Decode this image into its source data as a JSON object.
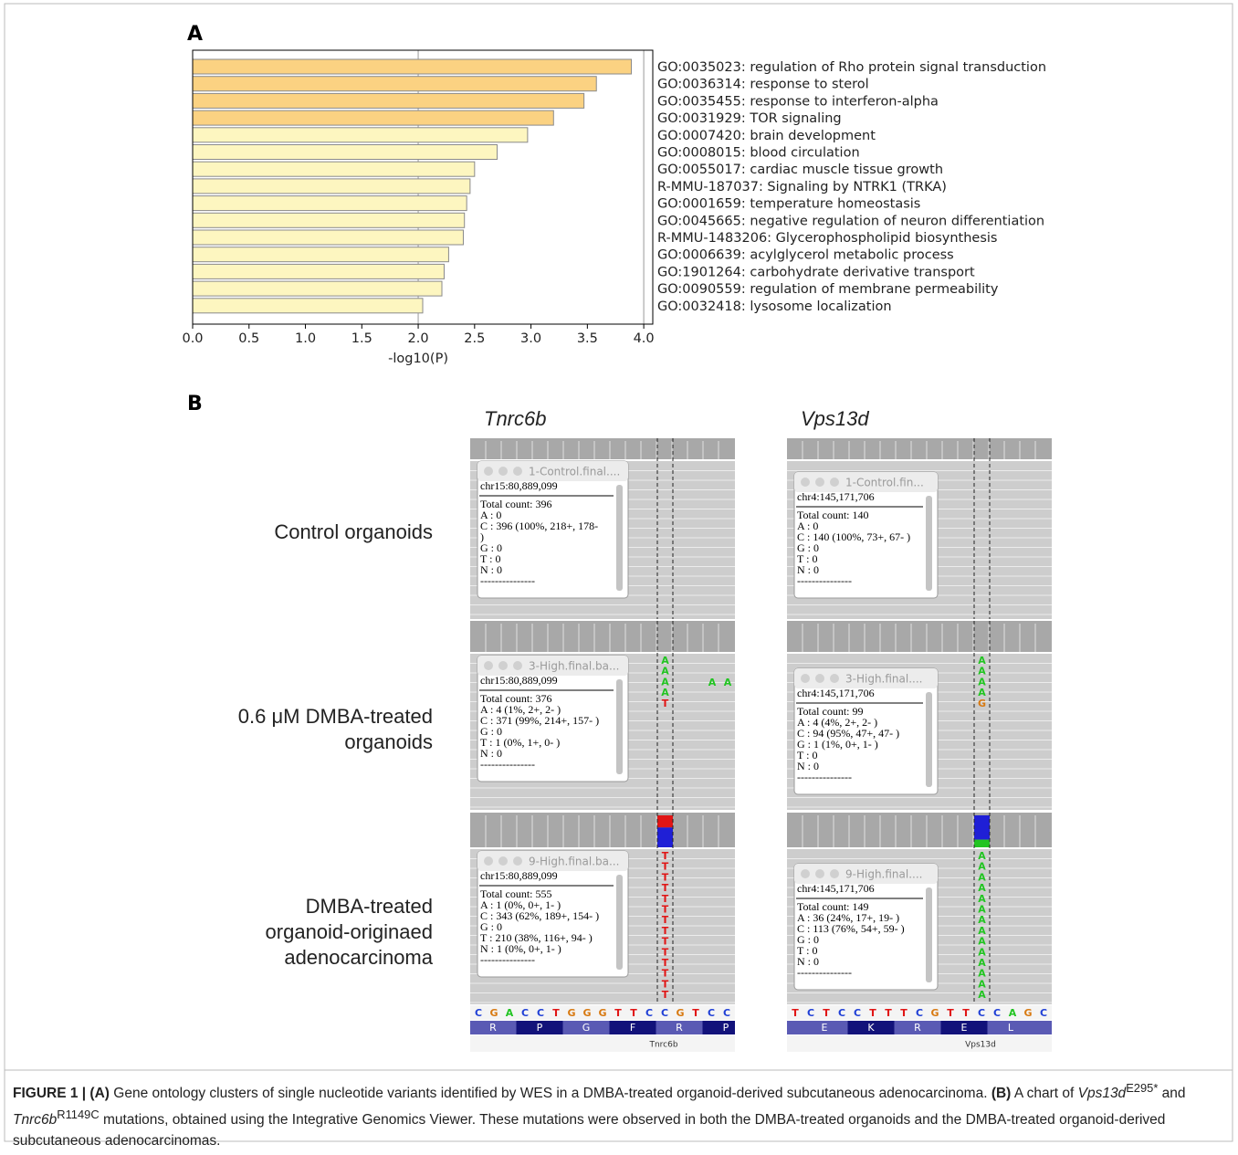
{
  "chart_data": {
    "type": "bar",
    "orientation": "horizontal",
    "panel_label": "A",
    "categories": [
      "GO:0035023: regulation of Rho protein signal transduction",
      "GO:0036314: response to sterol",
      "GO:0035455: response to interferon-alpha",
      "GO:0031929: TOR signaling",
      "GO:0007420: brain development",
      "GO:0008015: blood circulation",
      "GO:0055017: cardiac muscle tissue growth",
      "R-MMU-187037: Signaling by NTRK1 (TRKA)",
      "GO:0001659: temperature homeostasis",
      "GO:0045665: negative regulation of neuron differentiation",
      "R-MMU-1483206: Glycerophospholipid biosynthesis",
      "GO:0006639: acylglycerol metabolic process",
      "GO:1901264: carbohydrate derivative transport",
      "GO:0090559: regulation of membrane permeability",
      "GO:0032418: lysosome localization"
    ],
    "values": [
      3.89,
      3.58,
      3.47,
      3.2,
      2.97,
      2.7,
      2.5,
      2.46,
      2.43,
      2.41,
      2.4,
      2.27,
      2.23,
      2.21,
      2.04
    ],
    "colors": [
      "#fbd282",
      "#fbd282",
      "#fbd282",
      "#fbd282",
      "#fdf6c0",
      "#fdf6c0",
      "#fdf6c0",
      "#fdf6c0",
      "#fdf6c0",
      "#fdf6c0",
      "#fdf6c0",
      "#fdf6c0",
      "#fdf6c0",
      "#fdf6c0",
      "#fdf6c0"
    ],
    "xlabel": "-log10(P)",
    "xlim": [
      0,
      4.08
    ],
    "xticks": [
      {
        "value": 0,
        "label": "0.0"
      },
      0.5,
      {
        "value": 1,
        "label": "1.0"
      },
      1.5,
      {
        "value": 2,
        "label": "2.0"
      },
      2.5,
      {
        "value": 3,
        "label": "3.0"
      },
      3.5,
      {
        "value": 4,
        "label": "4.0"
      }
    ],
    "vlines": [
      2,
      4
    ]
  },
  "panel_b": {
    "label": "B",
    "conditions": [
      [
        "Control organoids"
      ],
      [
        "0.6 μM DMBA-treated",
        "organoids"
      ],
      [
        "DMBA-treated",
        "organoid-originaed",
        "adenocarcinoma"
      ]
    ],
    "base_colors": {
      "A": "#22c422",
      "C": "#1f3fd6",
      "G": "#d87a12",
      "T": "#e01515"
    },
    "columns": [
      {
        "gene": "Tnrc6b",
        "gene_label": "Tnrc6b",
        "sequence": [
          "C",
          "G",
          "A",
          "C",
          "C",
          "T",
          "G",
          "G",
          "G",
          "T",
          "T",
          "C",
          "C",
          "G",
          "T",
          "C",
          "C"
        ],
        "amino_acids": [
          "R",
          "P",
          "G",
          "F",
          "R",
          "P"
        ],
        "rows": [
          {
            "popup_title": "1-Control.final....",
            "popup_lines": [
              "chr15:80,889,099",
              "Total count: 396",
              "A : 0",
              "C : 396 (100%, 218+, 178-",
              ")",
              "G : 0",
              "T : 0",
              "N : 0",
              "---------------"
            ],
            "bases": []
          },
          {
            "popup_title": "3-High.final.ba...",
            "popup_lines": [
              "chr15:80,889,099",
              "Total count: 376",
              "A : 4 (1%, 2+, 2- )",
              "C : 371 (99%, 214+, 157- )",
              "G : 0",
              "T : 1 (0%, 1+, 0- )",
              "N : 0",
              "---------------"
            ],
            "bases": [
              "A",
              "A",
              "A",
              "A",
              "T"
            ],
            "side_bases": [
              "A",
              "A"
            ]
          },
          {
            "popup_title": "9-High.final.ba...",
            "popup_lines": [
              "chr15:80,889,099",
              "Total count: 555",
              "A : 1 (0%, 0+, 1- )",
              "C : 343 (62%, 189+, 154- )",
              "G : 0",
              "T : 210 (38%, 116+, 94- )",
              "N : 1 (0%, 0+, 1- )",
              "---------------"
            ],
            "bases": [
              "T",
              "T",
              "T",
              "T",
              "T",
              "T",
              "T",
              "T",
              "T",
              "T",
              "T",
              "T",
              "T",
              "T"
            ]
          }
        ]
      },
      {
        "gene": "Vps13d",
        "gene_label": "Vps13d",
        "sequence": [
          "T",
          "C",
          "T",
          "C",
          "C",
          "T",
          "T",
          "T",
          "C",
          "G",
          "T",
          "T",
          "C",
          "C",
          "A",
          "G",
          "C"
        ],
        "amino_acids": [
          "E",
          "K",
          "R",
          "E",
          "L"
        ],
        "rows": [
          {
            "popup_title": "1-Control.fin...",
            "popup_lines": [
              "chr4:145,171,706",
              "Total count: 140",
              "A : 0",
              "C : 140 (100%, 73+, 67- )",
              "G : 0",
              "T : 0",
              "N : 0",
              "---------------"
            ],
            "bases": []
          },
          {
            "popup_title": "3-High.final....",
            "popup_lines": [
              "chr4:145,171,706",
              "Total count: 99",
              "A : 4 (4%, 2+, 2- )",
              "C : 94 (95%, 47+, 47- )",
              "G : 1 (1%, 0+, 1- )",
              "T : 0",
              "N : 0",
              "---------------"
            ],
            "bases": [
              "A",
              "A",
              "A",
              "A",
              "G"
            ]
          },
          {
            "popup_title": "9-High.final....",
            "popup_lines": [
              "chr4:145,171,706",
              "Total count: 149",
              "A : 36 (24%, 17+, 19- )",
              "C : 113 (76%, 54+, 59- )",
              "G : 0",
              "T : 0",
              "N : 0",
              "---------------"
            ],
            "bases": [
              "A",
              "A",
              "A",
              "A",
              "A",
              "A",
              "A",
              "A",
              "A",
              "A",
              "A",
              "A",
              "A",
              "A"
            ]
          }
        ]
      }
    ]
  },
  "caption": [
    "FIGURE 1 | (A)",
    "Gene ontology clusters of single nucleotide variants identified by WES in a DMBA-treated organoid-derived subcutaneous adenocarcinoma.",
    "(B)",
    "A chart of",
    "Vps13d",
    "E295*",
    "and",
    "Tnrc6b",
    "R1149C",
    "mutations, obtained using the Integrative Genomics Viewer. These mutations were observed in both the DMBA-treated organoids and the DMBA-treated organoid-derived subcutaneous adenocarcinomas."
  ]
}
